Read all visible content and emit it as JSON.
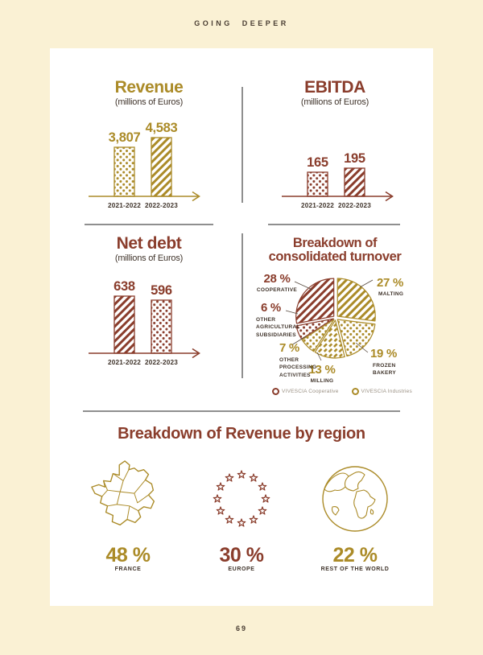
{
  "page": {
    "header": "GOING DEEPER",
    "page_number": "69"
  },
  "colors": {
    "gold": "#AB8B28",
    "brown": "#8A3D2C",
    "dark_text": "#3F332A",
    "background": "#FAF1D4",
    "card": "#FFFFFF"
  },
  "charts": {
    "revenue": {
      "title": "Revenue",
      "subtitle": "(millions of Euros)",
      "bars": [
        {
          "label": "2021-2022",
          "value": "3,807"
        },
        {
          "label": "2022-2023",
          "value": "4,583"
        }
      ]
    },
    "ebitda": {
      "title": "EBITDA",
      "subtitle": "(millions of Euros)",
      "bars": [
        {
          "label": "2021-2022",
          "value": "165"
        },
        {
          "label": "2022-2023",
          "value": "195"
        }
      ]
    },
    "net_debt": {
      "title": "Net debt",
      "subtitle": "(millions of Euros)",
      "bars": [
        {
          "label": "2021-2022",
          "value": "638"
        },
        {
          "label": "2022-2023",
          "value": "596"
        }
      ]
    },
    "turnover": {
      "title": "Breakdown of\nconsolidated turnover",
      "callouts": [
        {
          "pct": "28 %",
          "name": "COOPERATIVE"
        },
        {
          "pct": "27 %",
          "name": "MALTING"
        },
        {
          "pct": "19 %",
          "name": "FROZEN\nBAKERY"
        },
        {
          "pct": "13 %",
          "name": "MILLING"
        },
        {
          "pct": "7 %",
          "name": "OTHER\nPROCESSING\nACTIVITIES"
        },
        {
          "pct": "6 %",
          "name": "OTHER\nAGRICULTURAL\nSUBSIDIARIES"
        }
      ],
      "legend": [
        {
          "label": "VIVESCIA Cooperative",
          "color": "#8A3D2C"
        },
        {
          "label": "VIVESCIA Industries",
          "color": "#AB8B28"
        }
      ]
    }
  },
  "regions": {
    "title": "Breakdown of Revenue by region",
    "items": [
      {
        "pct": "48 %",
        "label": "FRANCE",
        "icon": "france-map-icon"
      },
      {
        "pct": "30 %",
        "label": "EUROPE",
        "icon": "eu-stars-icon"
      },
      {
        "pct": "22 %",
        "label": "REST OF THE WORLD",
        "icon": "globe-icon"
      }
    ]
  },
  "chart_data": [
    {
      "type": "bar",
      "title": "Revenue",
      "ylabel": "millions of Euros",
      "categories": [
        "2021-2022",
        "2022-2023"
      ],
      "values": [
        3807,
        4583
      ]
    },
    {
      "type": "bar",
      "title": "EBITDA",
      "ylabel": "millions of Euros",
      "categories": [
        "2021-2022",
        "2022-2023"
      ],
      "values": [
        165,
        195
      ]
    },
    {
      "type": "bar",
      "title": "Net debt",
      "ylabel": "millions of Euros",
      "categories": [
        "2021-2022",
        "2022-2023"
      ],
      "values": [
        638,
        596
      ]
    },
    {
      "type": "pie",
      "title": "Breakdown of consolidated turnover",
      "labels": [
        "Malting",
        "Frozen bakery",
        "Milling",
        "Other processing activities",
        "Other agricultural subsidiaries",
        "Cooperative"
      ],
      "values": [
        27,
        19,
        13,
        7,
        6,
        28
      ],
      "legend": [
        "VIVESCIA Cooperative",
        "VIVESCIA Industries"
      ]
    },
    {
      "type": "pie",
      "title": "Breakdown of Revenue by region",
      "labels": [
        "France",
        "Europe",
        "Rest of the world"
      ],
      "values": [
        48,
        30,
        22
      ]
    }
  ]
}
